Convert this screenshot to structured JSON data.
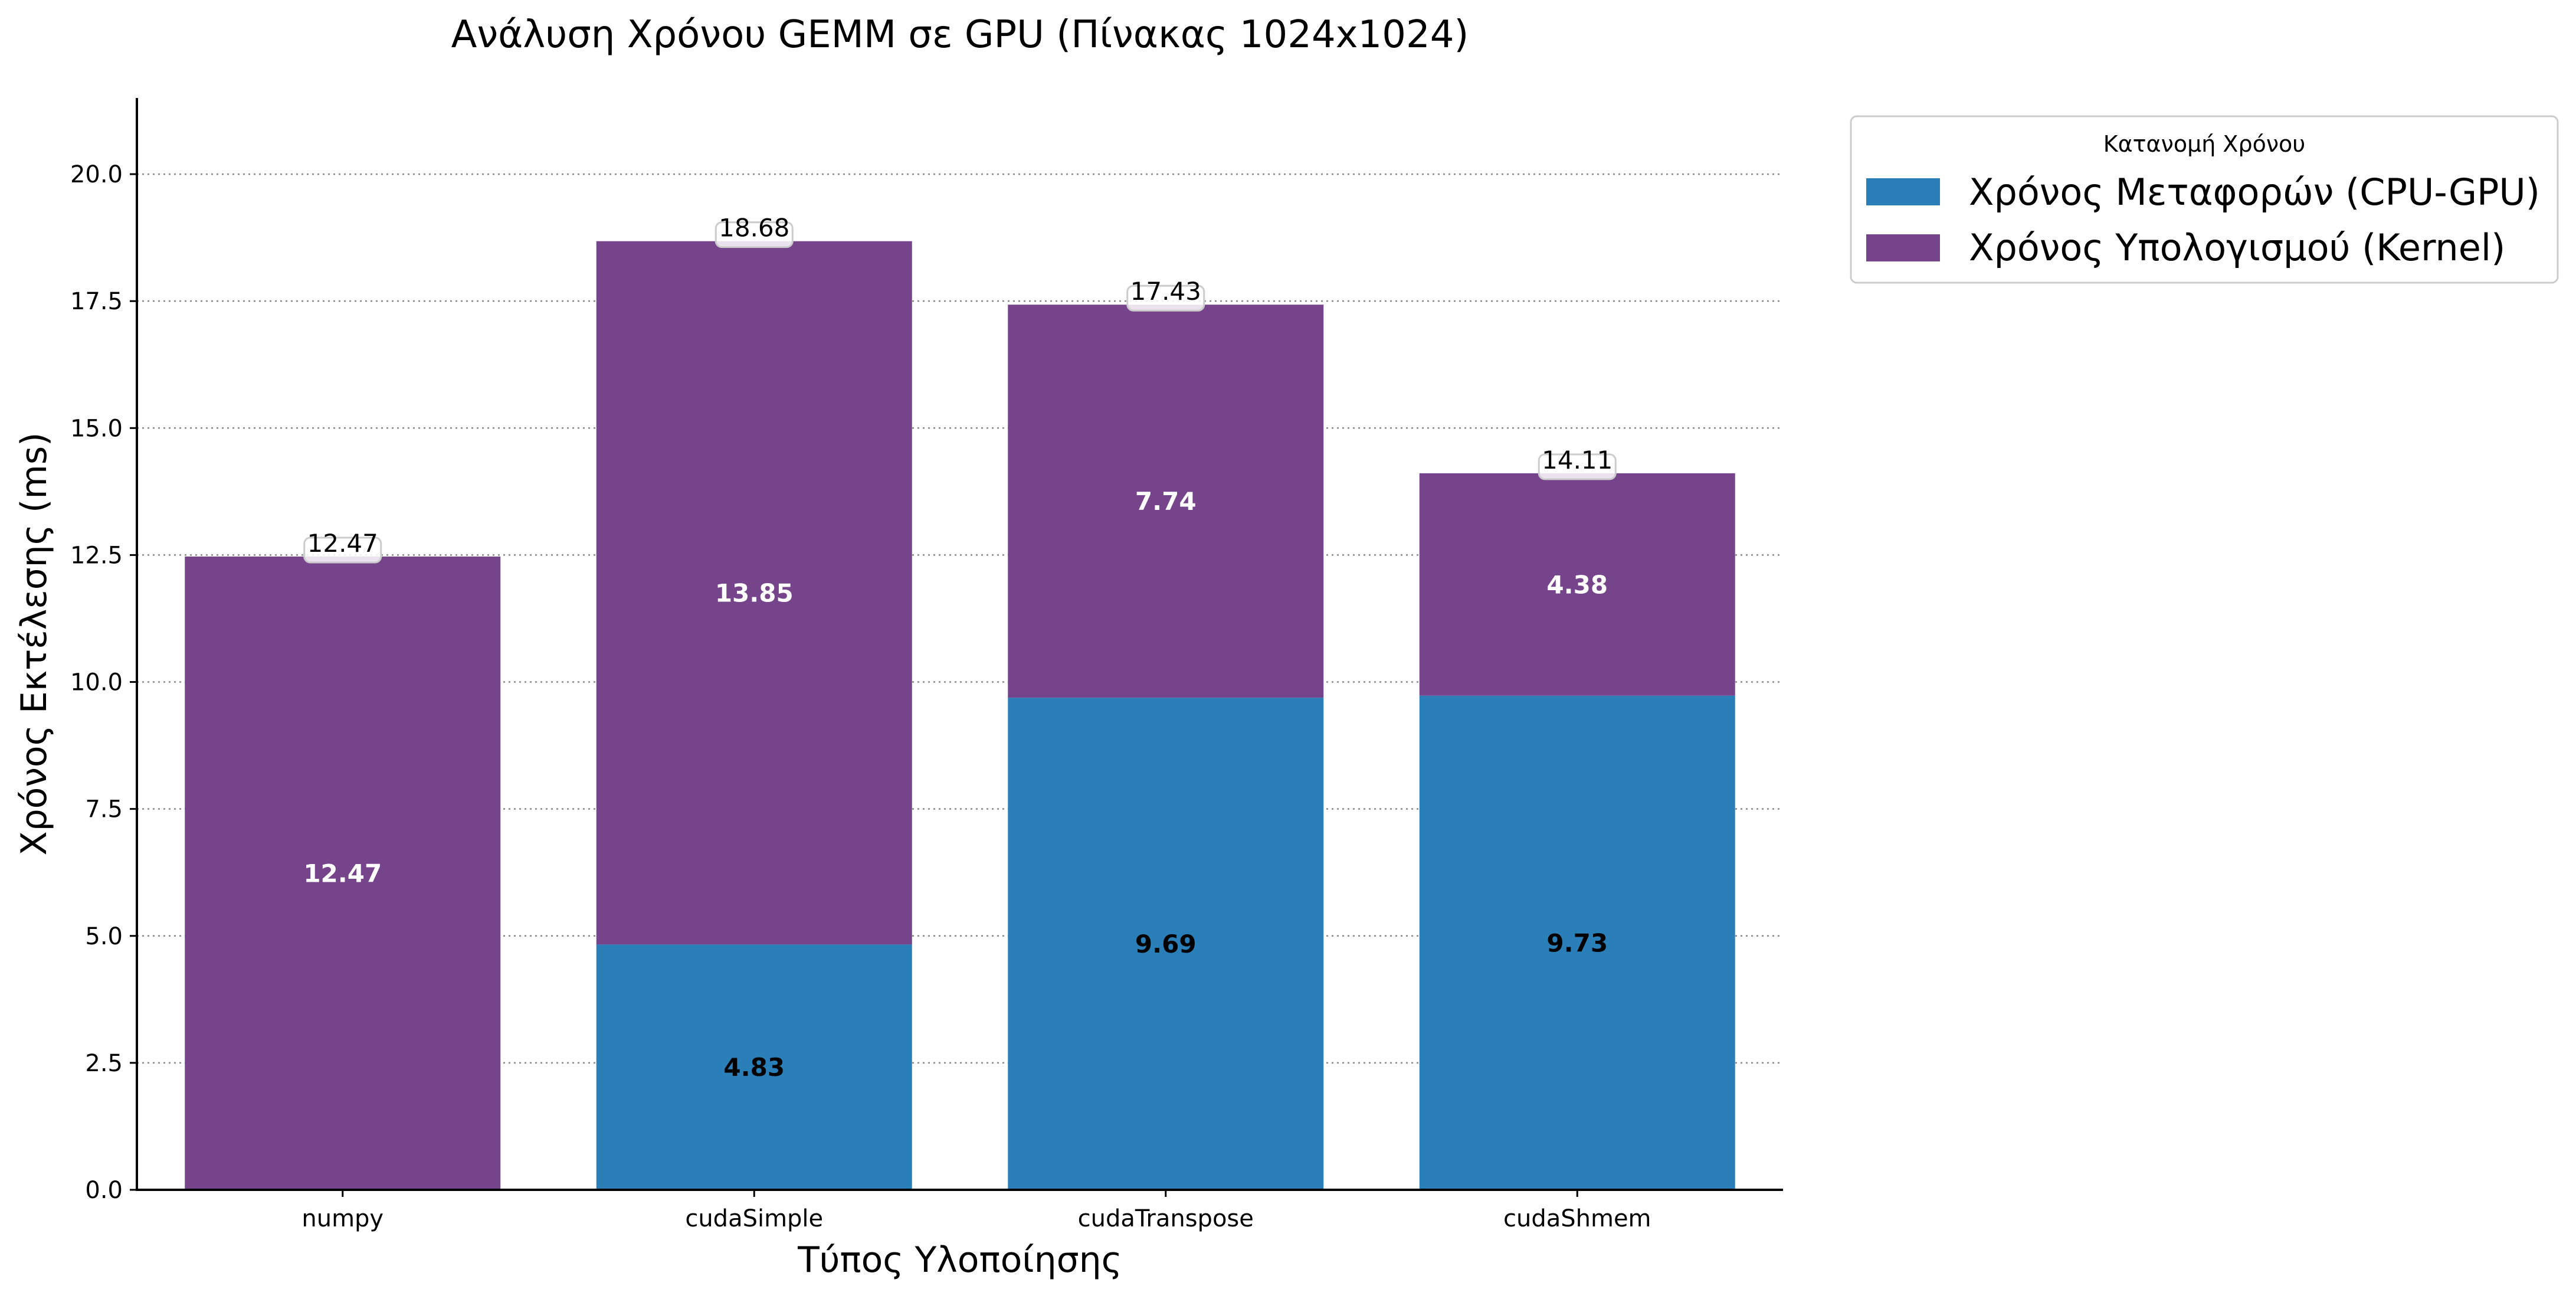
{
  "chart_data": {
    "type": "bar",
    "stacked": true,
    "title": "Ανάλυση Χρόνου GEMM σε GPU (Πίνακας 1024x1024)",
    "xlabel": "Τύπος Υλοποίησης",
    "ylabel": "Χρόνος Εκτέλεσης (ms)",
    "categories": [
      "numpy",
      "cudaSimple",
      "cudaTranspose",
      "cudaShmem"
    ],
    "series": [
      {
        "name": "Χρόνος Μεταφορών (CPU-GPU)",
        "values": [
          0,
          4.83,
          9.69,
          9.73
        ],
        "labels": [
          "",
          "4.83",
          "9.69",
          "9.73"
        ],
        "color": "#2b7fb8",
        "label_color": "#000000"
      },
      {
        "name": "Χρόνος Υπολογισμού (Kernel)",
        "values": [
          12.47,
          13.85,
          7.74,
          4.38
        ],
        "labels": [
          "12.47",
          "13.85",
          "7.74",
          "4.38"
        ],
        "color": "#76448a",
        "label_color": "#ffffff"
      }
    ],
    "totals": [
      "12.47",
      "18.68",
      "17.43",
      "14.11"
    ],
    "ylim": [
      0,
      21.5
    ],
    "yticks": [
      "0.0",
      "2.5",
      "5.0",
      "7.5",
      "10.0",
      "12.5",
      "15.0",
      "17.5",
      "20.0"
    ],
    "grid": "y-dotted",
    "legend": {
      "title": "Κατανομή Χρόνου",
      "placement": "outside-top-right"
    }
  }
}
